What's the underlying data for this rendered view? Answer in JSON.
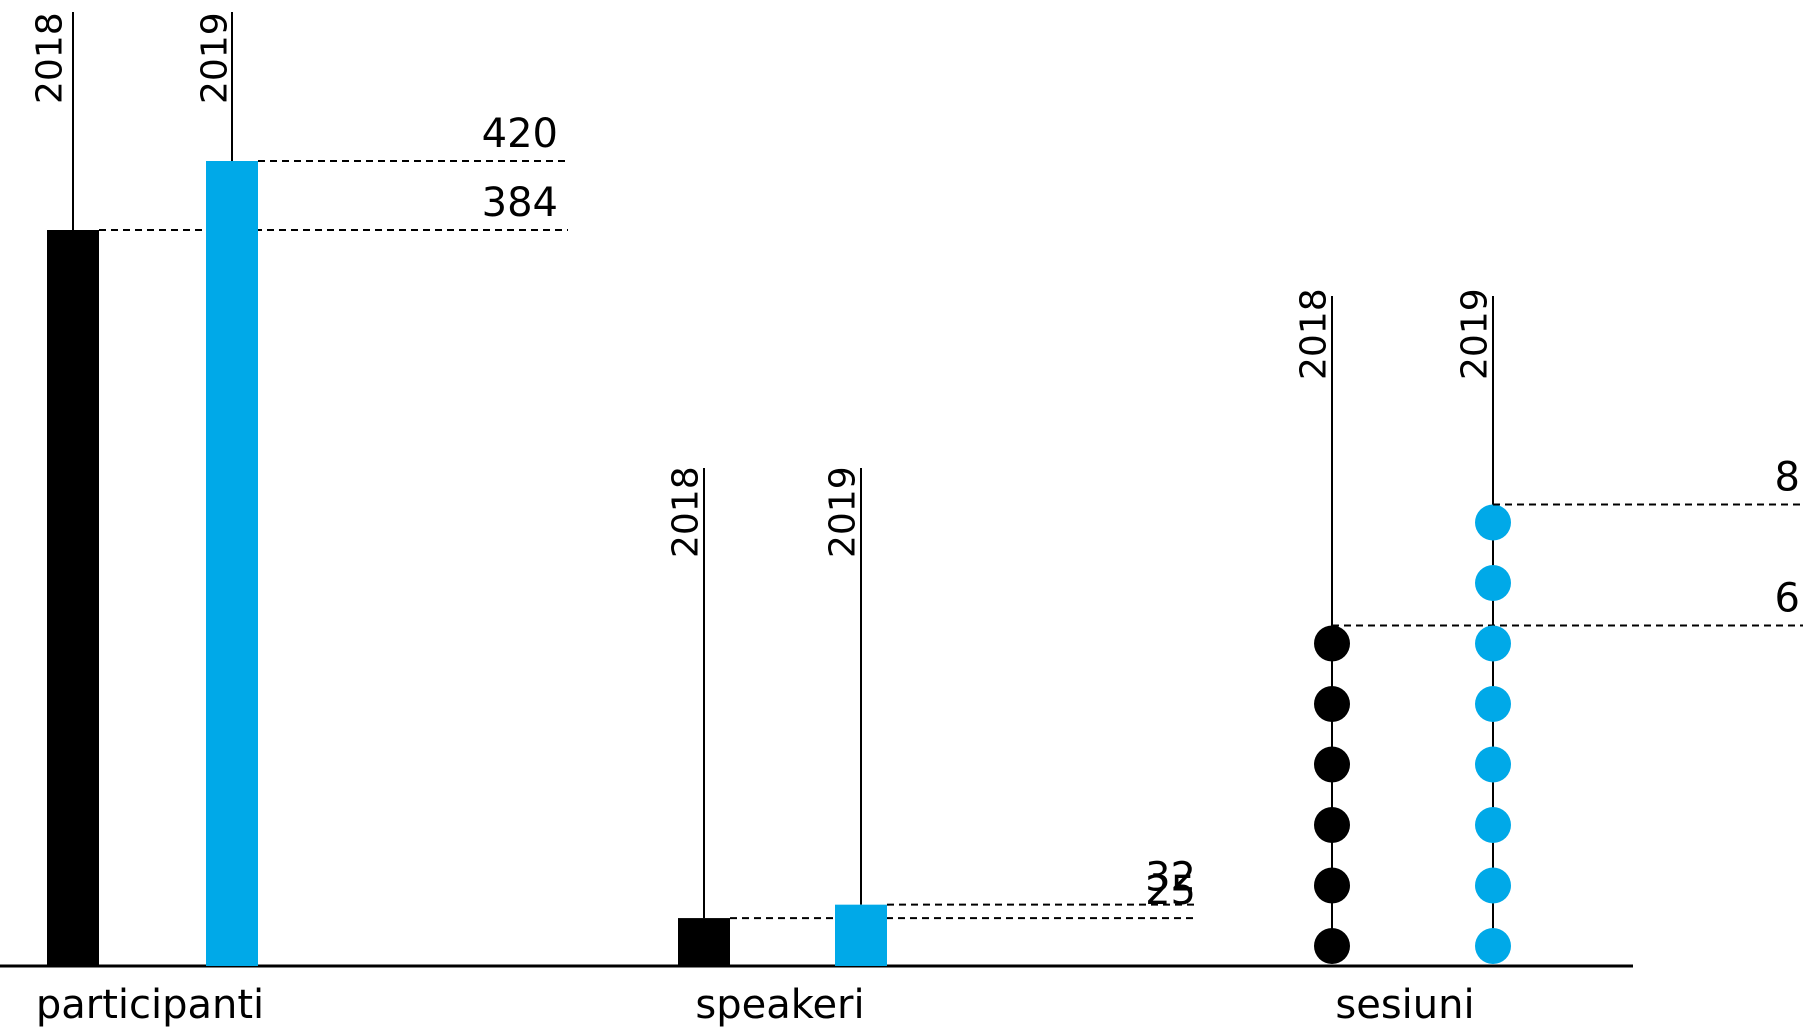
{
  "chart_data": {
    "type": "bar",
    "categories": [
      "participanti",
      "speakeri",
      "sesiuni"
    ],
    "series": [
      {
        "name": "2018",
        "color": "#000000",
        "values": [
          384,
          25,
          6
        ]
      },
      {
        "name": "2019",
        "color": "#00a9e8",
        "values": [
          420,
          32,
          8
        ]
      }
    ],
    "value_labels": [
      [
        "384",
        "420"
      ],
      [
        "25",
        "32"
      ],
      [
        "6",
        "8"
      ]
    ],
    "year_labels": [
      "2018",
      "2019"
    ],
    "sesiuni_style": "dots",
    "grid": false,
    "legend": "none"
  }
}
